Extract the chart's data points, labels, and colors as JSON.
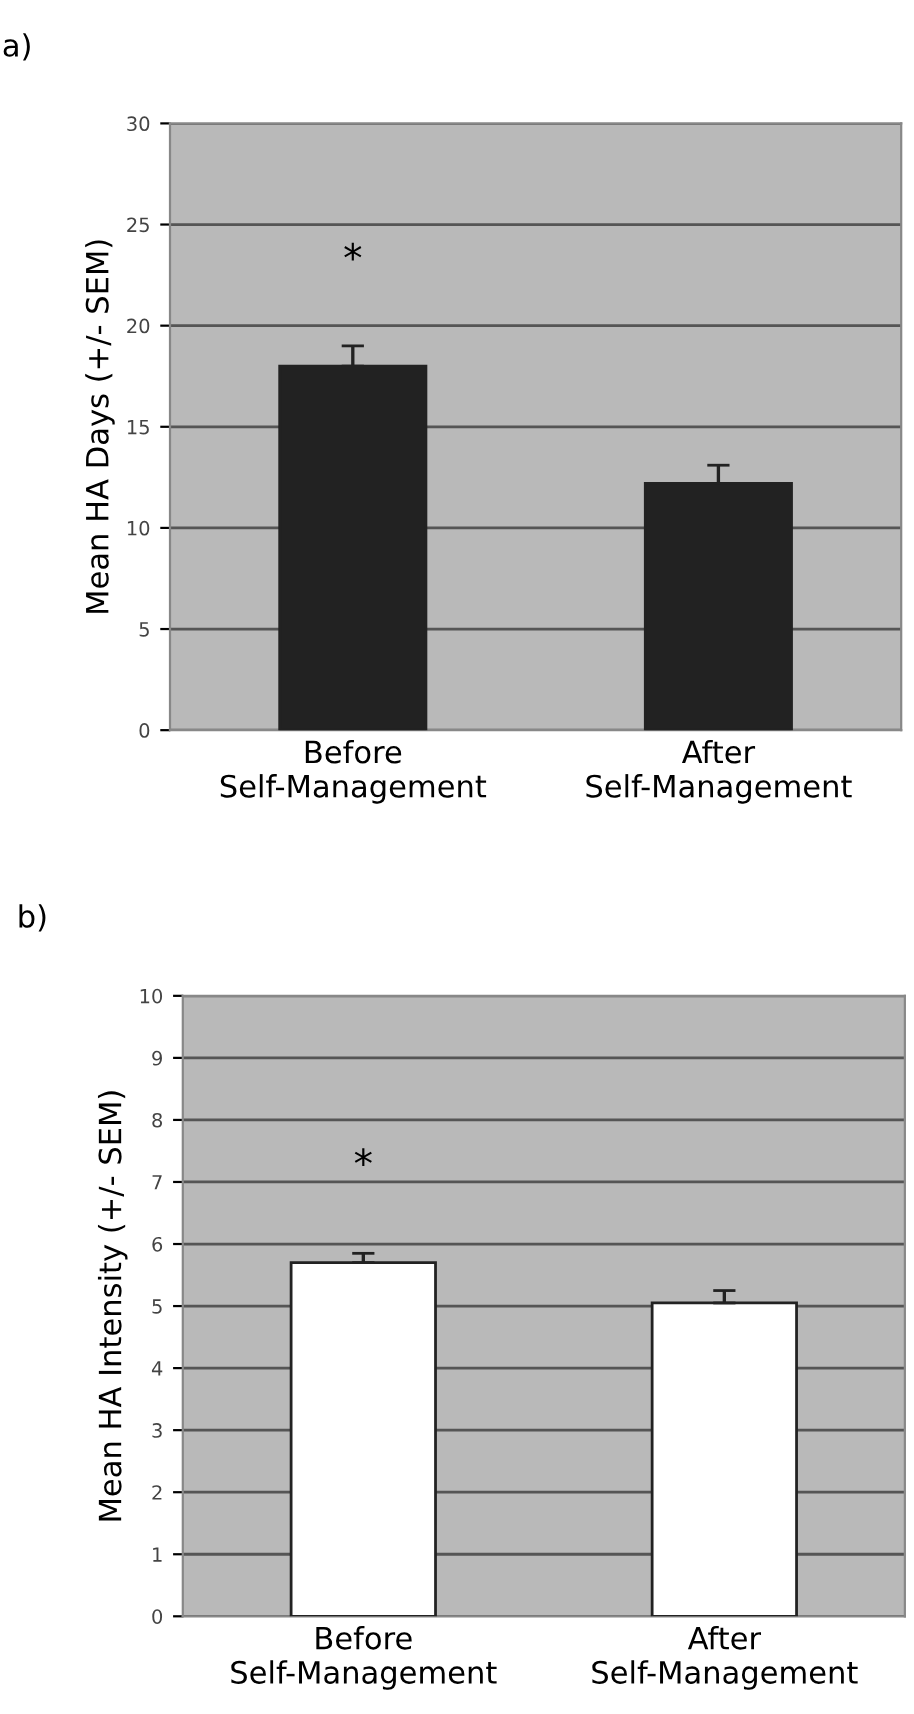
{
  "chart_data": [
    {
      "type": "bar",
      "title": "a)",
      "ylabel": "Mean HA Days (+/- SEM)",
      "categories": [
        "Before\nSelf-Management",
        "After\nSelf-Management"
      ],
      "values": [
        18.0,
        12.2
      ],
      "errors": [
        [
          18.0,
          19.0
        ],
        [
          12.2,
          13.1
        ]
      ],
      "color": "#222222",
      "ylim": [
        0,
        30
      ],
      "yticks": [
        0,
        5,
        10,
        15,
        20,
        25,
        30
      ],
      "grid": "y",
      "annotations": [
        "*"
      ]
    },
    {
      "type": "bar",
      "title": "b)",
      "ylabel": "Mean HA Intensity (+/- SEM)",
      "categories": [
        "Before\nSelf-Management",
        "After\nSelf-Management"
      ],
      "values": [
        5.7,
        5.05
      ],
      "errors": [
        [
          5.7,
          5.85
        ],
        [
          5.05,
          5.25
        ]
      ],
      "color": "#ffffff",
      "ylim": [
        0,
        10
      ],
      "yticks": [
        0,
        1,
        2,
        3,
        4,
        5,
        6,
        7,
        8,
        9,
        10
      ],
      "grid": "y",
      "annotations": [
        "*"
      ]
    }
  ]
}
